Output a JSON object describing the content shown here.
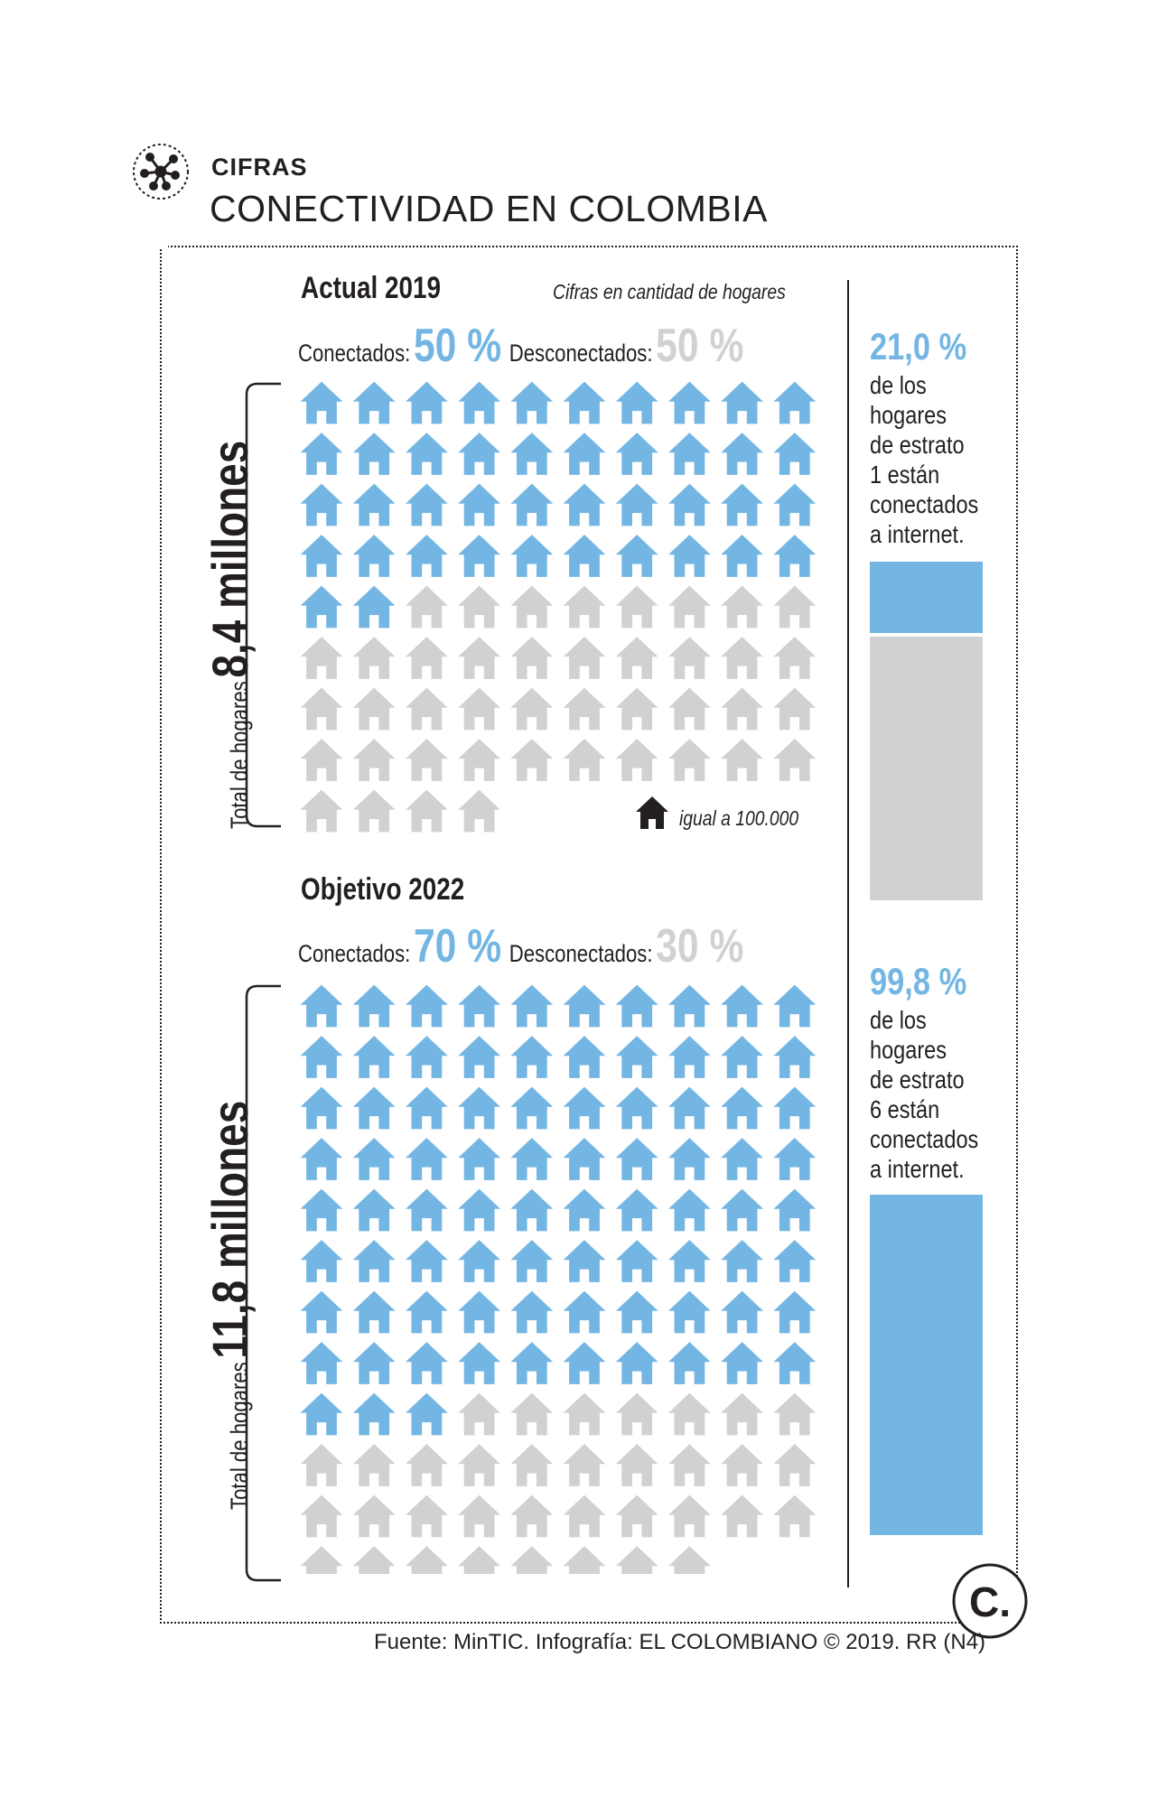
{
  "header": {
    "kicker": "CIFRAS",
    "title": "CONECTIVIDAD EN COLOMBIA"
  },
  "units_note": "Cifras en cantidad de hogares",
  "legend_note": "igual a 100.000",
  "colors": {
    "connected": "#74b6e3",
    "disconnected": "#d0d1d3",
    "text": "#231f20"
  },
  "icons": {
    "kicker": "network-icon",
    "unit": "house-icon",
    "brand": "el-colombiano-logo"
  },
  "panels": [
    {
      "title": "Actual 2019",
      "connected_label": "Conectados:",
      "connected_pct": "50 %",
      "disconnected_label": "Desconectados:",
      "disconnected_pct": "50 %",
      "total_prefix": "Total de hogares",
      "total_value": "8,4 millones"
    },
    {
      "title": "Objetivo 2022",
      "connected_label": "Conectados:",
      "connected_pct": "70 %",
      "disconnected_label": "Desconectados:",
      "disconnected_pct": "30 %",
      "total_prefix": "Total de hogares",
      "total_value": "11,8 millones"
    }
  ],
  "side": [
    {
      "pct": "21,0 %",
      "lines": [
        "de los",
        "hogares",
        "de estrato",
        "1 están",
        "conectados",
        "a internet."
      ],
      "connected_fraction": 0.21
    },
    {
      "pct": "99,8 %",
      "lines": [
        "de los",
        "hogares",
        "de estrato",
        "6 están",
        "conectados",
        "a internet."
      ],
      "connected_fraction": 0.998
    }
  ],
  "chart_data": [
    {
      "type": "waffle",
      "title": "Actual 2019",
      "unit_value": 100000,
      "series": [
        {
          "name": "Conectados",
          "count": 42
        },
        {
          "name": "Desconectados",
          "count": 42
        }
      ]
    },
    {
      "type": "waffle",
      "title": "Objetivo 2022",
      "unit_value": 100000,
      "series": [
        {
          "name": "Conectados",
          "count": 83
        },
        {
          "name": "Desconectados",
          "count": 35
        }
      ]
    },
    {
      "type": "bar",
      "categories": [
        "estrato 1",
        "estrato 6"
      ],
      "values": [
        21.0,
        99.8
      ],
      "ylim": [
        0,
        100
      ]
    }
  ],
  "footer": {
    "source": "Fuente: MinTIC. Infografía: EL COLOMBIANO © 2019. RR (N4)",
    "brand_text": "C."
  }
}
